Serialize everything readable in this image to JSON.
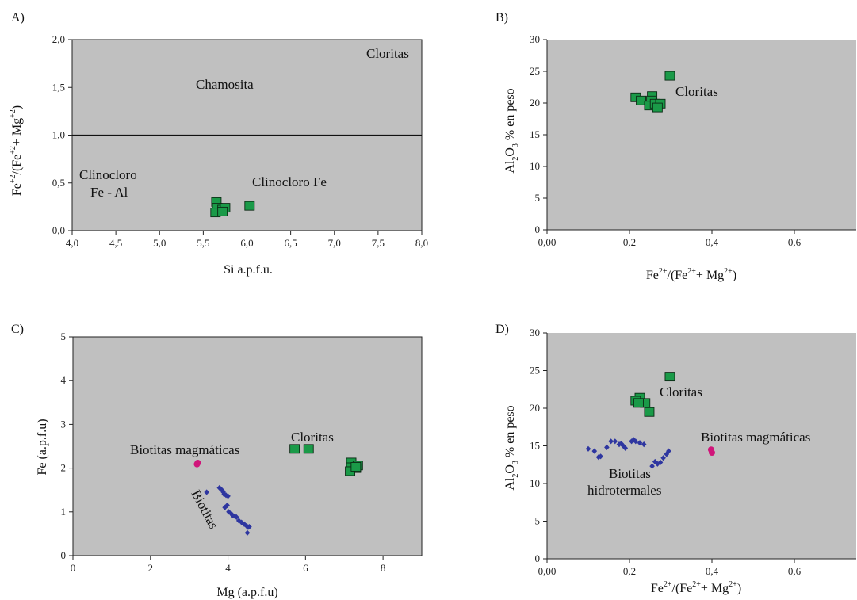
{
  "chart_data": [
    {
      "panel": "A)",
      "type": "scatter",
      "xlabel": "Si a.p.f.u.",
      "ylabel": "Fe+2/(Fe+2+ Mg+2)",
      "ylabel_parts": {
        "a": "Fe",
        "a_sup": "+2",
        "b": "/(Fe",
        "b_sup": "+2",
        "c": "+ Mg",
        "c_sup": "+2",
        "d": ")"
      },
      "xlim": [
        4.0,
        8.0
      ],
      "ylim": [
        0.0,
        2.0
      ],
      "xticks": [
        "4,0",
        "4,5",
        "5,0",
        "5,5",
        "6,0",
        "6,5",
        "7,0",
        "7,5",
        "8,0"
      ],
      "yticks": [
        "0,0",
        "0,5",
        "1,0",
        "1,5",
        "2,0"
      ],
      "xtick_values": [
        4.0,
        4.5,
        5.0,
        5.5,
        6.0,
        6.5,
        7.0,
        7.5,
        8.0
      ],
      "ytick_values": [
        0.0,
        0.5,
        1.0,
        1.5,
        2.0
      ],
      "field_line_y": 1.0,
      "annotations": {
        "cloritas": "Cloritas",
        "chamosita": "Chamosita",
        "clinocloro_1": "Clinocloro",
        "clinocloro_2": "Fe - Al",
        "clinocloro_fe": "Clinocloro Fe"
      },
      "series": [
        {
          "marker": "square",
          "color": "#1a9a48",
          "x": [
            5.65,
            5.66,
            5.72,
            5.75,
            5.64,
            5.72,
            6.03
          ],
          "y": [
            0.3,
            0.24,
            0.22,
            0.24,
            0.19,
            0.2,
            0.26
          ]
        }
      ]
    },
    {
      "panel": "B)",
      "type": "scatter",
      "xlabel": "Fe2+/(Fe2++ Mg2+)",
      "xlabel_parts": {
        "a": "Fe",
        "a_sup": "2+",
        "b": "/(Fe",
        "b_sup": "2+",
        "c": "+ Mg",
        "c_sup": "2+",
        "d": ")"
      },
      "ylabel": "Al2O3 % en peso",
      "xlim": [
        0.0,
        0.75
      ],
      "ylim": [
        0,
        30
      ],
      "xticks": [
        "0,00",
        "0,2",
        "0,4",
        "0,6"
      ],
      "xtick_values": [
        0.0,
        0.2,
        0.4,
        0.6
      ],
      "yticks": [
        "0",
        "5",
        "10",
        "15",
        "20",
        "25",
        "30"
      ],
      "ytick_values": [
        0,
        5,
        10,
        15,
        20,
        25,
        30
      ],
      "annotations": {
        "cloritas": "Cloritas"
      },
      "series": [
        {
          "marker": "square",
          "color": "#1a9a48",
          "x": [
            0.298,
            0.215,
            0.228,
            0.255,
            0.253,
            0.248,
            0.262,
            0.275,
            0.268
          ],
          "y": [
            24.3,
            20.9,
            20.4,
            21.1,
            20.4,
            19.6,
            19.9,
            19.9,
            19.3
          ]
        }
      ]
    },
    {
      "panel": "C)",
      "type": "scatter",
      "xlabel": "Mg (a.p.f.u)",
      "ylabel": "Fe (a.p.f.u)",
      "xlim": [
        0,
        9
      ],
      "ylim": [
        0,
        5
      ],
      "xticks": [
        "0",
        "2",
        "4",
        "6",
        "8"
      ],
      "xtick_values": [
        0,
        2,
        4,
        6,
        8
      ],
      "yticks": [
        "0",
        "1",
        "2",
        "3",
        "4",
        "5"
      ],
      "ytick_values": [
        0,
        1,
        2,
        3,
        4,
        5
      ],
      "annotations": {
        "biotitas_magmaticas": "Biotitas magmáticas",
        "cloritas": "Cloritas",
        "biotitas": "Biotitas"
      },
      "series": [
        {
          "marker": "square",
          "color": "#1a9a48",
          "x": [
            5.72,
            6.08,
            7.18,
            7.18,
            7.35,
            7.3,
            7.15,
            7.3
          ],
          "y": [
            2.44,
            2.44,
            2.13,
            2.02,
            2.06,
            2.0,
            1.93,
            2.03
          ]
        },
        {
          "marker": "diamond",
          "color": "#2e36a0",
          "x": [
            3.45,
            3.78,
            3.82,
            3.86,
            3.88,
            3.9,
            3.95,
            4.0,
            3.98,
            3.92,
            4.02,
            4.08,
            4.12,
            4.18,
            4.22,
            4.28,
            4.35,
            4.42,
            4.48,
            4.52,
            4.55,
            4.5
          ],
          "y": [
            1.45,
            1.55,
            1.52,
            1.48,
            1.45,
            1.4,
            1.38,
            1.36,
            1.15,
            1.1,
            1.0,
            0.96,
            0.92,
            0.9,
            0.88,
            0.8,
            0.76,
            0.72,
            0.68,
            0.65,
            0.66,
            0.52
          ]
        },
        {
          "marker": "dot",
          "color": "#d0157a",
          "x": [
            3.22,
            3.2
          ],
          "y": [
            2.12,
            2.09
          ]
        }
      ]
    },
    {
      "panel": "D)",
      "type": "scatter",
      "xlabel": "Fe2+/(Fe2++ Mg2+)",
      "xlabel_parts": {
        "a": "Fe",
        "a_sup": "2+",
        "b": "/(Fe",
        "b_sup": "2+",
        "c": "+ Mg",
        "c_sup": "2+",
        "d": ")"
      },
      "ylabel": "Al2O3 % en peso",
      "xlim": [
        0.0,
        0.75
      ],
      "ylim": [
        0,
        30
      ],
      "xticks": [
        "0,00",
        "0,2",
        "0,4",
        "0,6"
      ],
      "xtick_values": [
        0.0,
        0.2,
        0.4,
        0.6
      ],
      "yticks": [
        "0",
        "5",
        "10",
        "15",
        "20",
        "25",
        "30"
      ],
      "ytick_values": [
        0,
        5,
        10,
        15,
        20,
        25,
        30
      ],
      "annotations": {
        "cloritas": "Cloritas",
        "biotitas_magmaticas": "Biotitas magmáticas",
        "biotitas_hidro_1": "Biotitas",
        "biotitas_hidro_2": "hidrotermales"
      },
      "series": [
        {
          "marker": "square",
          "color": "#1a9a48",
          "x": [
            0.298,
            0.225,
            0.215,
            0.238,
            0.222,
            0.248
          ],
          "y": [
            24.2,
            21.4,
            21.0,
            20.7,
            20.7,
            19.5
          ]
        },
        {
          "marker": "diamond",
          "color": "#2e36a0",
          "x": [
            0.1,
            0.115,
            0.125,
            0.13,
            0.145,
            0.155,
            0.165,
            0.175,
            0.18,
            0.185,
            0.19,
            0.205,
            0.21,
            0.215,
            0.225,
            0.235,
            0.255,
            0.262,
            0.268,
            0.275,
            0.282,
            0.29,
            0.295
          ],
          "y": [
            14.6,
            14.3,
            13.5,
            13.6,
            14.8,
            15.6,
            15.6,
            15.2,
            15.3,
            15.0,
            14.7,
            15.6,
            15.8,
            15.6,
            15.4,
            15.2,
            12.3,
            12.9,
            12.6,
            12.8,
            13.4,
            13.9,
            14.3
          ]
        },
        {
          "marker": "dot",
          "color": "#d0157a",
          "x": [
            0.398,
            0.4
          ],
          "y": [
            14.5,
            14.1
          ]
        }
      ]
    }
  ]
}
